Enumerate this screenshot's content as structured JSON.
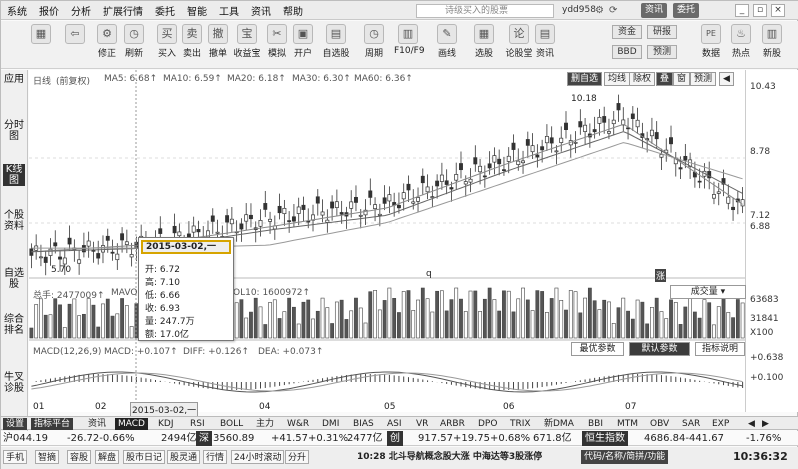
{
  "menu": [
    "系统",
    "报价",
    "分析",
    "扩展行情",
    "委托",
    "智能",
    "工具",
    "资讯",
    "帮助"
  ],
  "search_placeholder": "诗级买入的股票",
  "user": "ydd958",
  "top_pills": {
    "news": "资讯",
    "trade": "委托"
  },
  "window_buttons": [
    "_",
    "▫",
    "×"
  ],
  "toolbar": [
    {
      "icon": "apps-icon",
      "glyph": "▦",
      "label": ""
    },
    {
      "icon": "back-icon",
      "glyph": "⇦",
      "label": ""
    },
    {
      "icon": "settings-icon",
      "glyph": "⚙",
      "label": "修正"
    },
    {
      "icon": "clock-icon",
      "glyph": "◷",
      "label": "刷新"
    },
    {
      "icon": "buy-icon",
      "glyph": "买",
      "label": "买入"
    },
    {
      "icon": "sell-icon",
      "glyph": "卖",
      "label": "卖出"
    },
    {
      "icon": "cancel-order-icon",
      "glyph": "撤",
      "label": "撤单"
    },
    {
      "icon": "treasure-icon",
      "glyph": "宝",
      "label": "收益宝"
    },
    {
      "icon": "simulate-icon",
      "glyph": "✂",
      "label": "模拟"
    },
    {
      "icon": "lock-icon",
      "glyph": "▣",
      "label": "开户"
    },
    {
      "icon": "watchlist-icon",
      "glyph": "▤",
      "label": "自选股"
    },
    {
      "icon": "period-icon",
      "glyph": "◷",
      "label": "周期"
    },
    {
      "icon": "f10-icon",
      "glyph": "▥",
      "label": "F10/F9"
    },
    {
      "icon": "draw-line-icon",
      "glyph": "✎",
      "label": "画线"
    },
    {
      "icon": "stock-picker-icon",
      "glyph": "▦",
      "label": "选股"
    },
    {
      "icon": "ai-icon",
      "glyph": "论",
      "label": "论股堂"
    },
    {
      "icon": "news-icon",
      "glyph": "▤",
      "label": "资讯"
    }
  ],
  "toolbar_right": {
    "btn_fund": "资金",
    "btn_bbd": "BBD",
    "btn_research": "研报",
    "btn_forecast": "预测",
    "pe": "PE",
    "hot": "热点",
    "new": "新股",
    "data": "数据"
  },
  "left_tabs": [
    "应用",
    "分时图",
    "K线图",
    "个股资料",
    "自选股",
    "综合排名",
    "牛叉诊股"
  ],
  "chart_header": {
    "period": "日线",
    "adjust": "(前复权)",
    "ma5": "MA5: 6.68↑",
    "ma10": "MA10: 6.59↑",
    "ma20": "MA20: 6.18↑",
    "ma30": "MA30: 6.30↑",
    "ma60": "MA60: 6.36↑"
  },
  "header_buttons": [
    "删自选",
    "均线",
    "除权",
    "叠",
    "窗",
    "预测",
    "◀"
  ],
  "price_labels": {
    "max": "10.18",
    "min": "5.70",
    "high_marker": "10.43"
  },
  "right_axis": [
    "10.43",
    "8.78",
    "7.12",
    "6.88",
    "63683",
    "31841",
    "X100",
    "+0.638",
    "+0.100"
  ],
  "markers": [
    "q",
    "涨"
  ],
  "volume_header": {
    "label": "总手: 2477009↑",
    "mavol": "MAVOL5: ...",
    "vol10": "OL10: 1600972↑",
    "dropdown": "成交量"
  },
  "macd_header": {
    "label": "MACD(12,26,9)",
    "macd": "MACD: +0.107↑",
    "diff": "DIFF: +0.126↑",
    "dea": "DEA: +0.073↑"
  },
  "macd_buttons": {
    "opt": "最优参数",
    "default": "默认参数",
    "help": "指标说明"
  },
  "tooltip": {
    "date": "2015-03-02,一",
    "rows": [
      "开: 6.72",
      "高: 7.10",
      "低: 6.66",
      "收: 6.93",
      "量: 247.7万",
      "额: 17.0亿"
    ]
  },
  "x_axis": [
    "01",
    "02",
    "2015-03-02,一",
    "04",
    "05",
    "06",
    "07"
  ],
  "indicator_tabs": [
    "设置",
    "指标平台",
    "资讯",
    "MACD",
    "KDJ",
    "RSI",
    "BOLL",
    "主力",
    "W&R",
    "DMI",
    "BIAS",
    "ASI",
    "VR",
    "ARBR",
    "DPO",
    "TRIX",
    "新DMA",
    "BBI",
    "MTM",
    "OBV",
    "SAR",
    "EXP"
  ],
  "quote_line": {
    "sh": "沪044.19",
    "sh_chg": "-26.72-0.66%",
    "sh_vol": "2494亿",
    "sz_label": "深",
    "sz": "3560.89",
    "sz_chg": "+41.57+0.31%",
    "sz_vol": "2477亿",
    "cy_label": "创",
    "cy": "917.57+19.75+0.68%",
    "cy_vol": "671.8亿",
    "hsi_label": "恒生指数",
    "hsi": "4686.84-441.67",
    "hsi_pct": "-1.76%"
  },
  "status_bar": {
    "items": [
      "手机",
      "智摘",
      "容股",
      "解盘",
      "股市日记",
      "股灵通",
      "行情",
      "24小时滚动",
      "分升"
    ],
    "ticker": "10:28 北斗导航概念股大涨 中海达等3股涨停",
    "search": "代码/名称/简拼/功能",
    "time": "10:36:32"
  },
  "chart_data": {
    "type": "candlestick",
    "categories": [
      "01",
      "02",
      "2015-03-02",
      "04",
      "05",
      "06",
      "07"
    ],
    "series": [
      {
        "name": "K线",
        "values": [
          5.9,
          6.2,
          6.93,
          7.3,
          8.5,
          9.7,
          7.2
        ]
      },
      {
        "name": "MA5",
        "values": [
          6.0,
          6.2,
          6.68,
          7.2,
          8.4,
          9.5,
          7.3
        ]
      },
      {
        "name": "MA10",
        "values": [
          6.0,
          6.1,
          6.59,
          7.0,
          8.2,
          9.3,
          7.6
        ]
      },
      {
        "name": "MA20",
        "values": [
          6.1,
          6.1,
          6.18,
          6.8,
          7.9,
          9.0,
          8.0
        ]
      }
    ],
    "ylim": [
      5.5,
      10.6
    ],
    "annotations": [
      "10.18",
      "5.70"
    ]
  }
}
